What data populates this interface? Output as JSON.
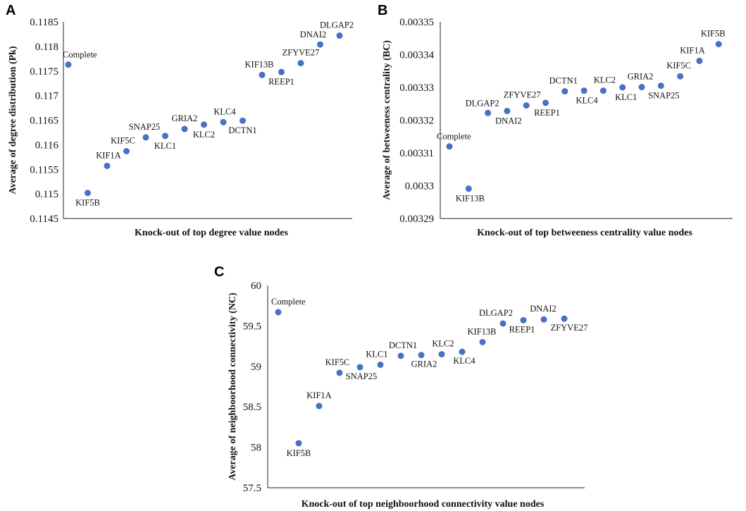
{
  "chart_data": [
    {
      "type": "scatter",
      "panel": "A",
      "xlabel": "Knock-out of top degree value nodes",
      "ylabel": "Average of degree distribution (Pk)",
      "ylim": [
        0.1145,
        0.1185
      ],
      "yticks": [
        "0.1145",
        "0.115",
        "0.1155",
        "0.116",
        "0.1165",
        "0.117",
        "0.1175",
        "0.118",
        "0.1185"
      ],
      "points": [
        {
          "x": 0,
          "y": 0.11763,
          "label": "Complete"
        },
        {
          "x": 1,
          "y": 0.11502,
          "label": "KIF5B"
        },
        {
          "x": 2,
          "y": 0.11557,
          "label": "KIF1A"
        },
        {
          "x": 3,
          "y": 0.11587,
          "label": "KIF5C"
        },
        {
          "x": 4,
          "y": 0.11615,
          "label": "SNAP25"
        },
        {
          "x": 5,
          "y": 0.11618,
          "label": "KLC1"
        },
        {
          "x": 6,
          "y": 0.11632,
          "label": "GRIA2"
        },
        {
          "x": 7,
          "y": 0.11641,
          "label": "KLC2"
        },
        {
          "x": 8,
          "y": 0.11646,
          "label": "KLC4"
        },
        {
          "x": 9,
          "y": 0.11649,
          "label": "DCTN1"
        },
        {
          "x": 10,
          "y": 0.11742,
          "label": "KIF13B"
        },
        {
          "x": 11,
          "y": 0.11748,
          "label": "REEP1"
        },
        {
          "x": 12,
          "y": 0.11766,
          "label": "ZFYVE27"
        },
        {
          "x": 13,
          "y": 0.11804,
          "label": "DNAI2"
        },
        {
          "x": 14,
          "y": 0.11822,
          "label": "DLGAP2"
        }
      ]
    },
    {
      "type": "scatter",
      "panel": "B",
      "xlabel": "Knock-out of top betweeness centrality value nodes",
      "ylabel": "Average of betweeness centrality (BC)",
      "ylim": [
        0.00329,
        0.00335
      ],
      "yticks": [
        "0.00329",
        "0.0033",
        "0.00331",
        "0.00332",
        "0.00333",
        "0.00334",
        "0.00335"
      ],
      "points": [
        {
          "x": 0,
          "y": 0.003312,
          "label": "Complete"
        },
        {
          "x": 1,
          "y": 0.0032991,
          "label": "KIF13B"
        },
        {
          "x": 2,
          "y": 0.0033222,
          "label": "DLGAP2"
        },
        {
          "x": 3,
          "y": 0.0033228,
          "label": "DNAI2"
        },
        {
          "x": 4,
          "y": 0.0033245,
          "label": "ZFYVE27"
        },
        {
          "x": 5,
          "y": 0.0033253,
          "label": "REEP1"
        },
        {
          "x": 6,
          "y": 0.0033288,
          "label": "DCTN1"
        },
        {
          "x": 7,
          "y": 0.003329,
          "label": "KLC4"
        },
        {
          "x": 8,
          "y": 0.003329,
          "label": "KLC2"
        },
        {
          "x": 9,
          "y": 0.00333,
          "label": "KLC1"
        },
        {
          "x": 10,
          "y": 0.0033301,
          "label": "GRIA2"
        },
        {
          "x": 11,
          "y": 0.0033305,
          "label": "SNAP25"
        },
        {
          "x": 12,
          "y": 0.0033334,
          "label": "KIF5C"
        },
        {
          "x": 13,
          "y": 0.0033381,
          "label": "KIF1A"
        },
        {
          "x": 14,
          "y": 0.0033432,
          "label": "KIF5B"
        }
      ]
    },
    {
      "type": "scatter",
      "panel": "C",
      "xlabel": "Knock-out of top neighboorhood connectivity value nodes",
      "ylabel": "Average of neighboorhood connectivity (NC)",
      "ylim": [
        57.5,
        60
      ],
      "yticks": [
        "57.5",
        "58",
        "58.5",
        "59",
        "59.5",
        "60"
      ],
      "points": [
        {
          "x": 0,
          "y": 59.67,
          "label": "Complete"
        },
        {
          "x": 1,
          "y": 58.05,
          "label": "KIF5B"
        },
        {
          "x": 2,
          "y": 58.51,
          "label": "KIF1A"
        },
        {
          "x": 3,
          "y": 58.92,
          "label": "KIF5C"
        },
        {
          "x": 4,
          "y": 58.99,
          "label": "SNAP25"
        },
        {
          "x": 5,
          "y": 59.02,
          "label": "KLC1"
        },
        {
          "x": 6,
          "y": 59.13,
          "label": "DCTN1"
        },
        {
          "x": 7,
          "y": 59.14,
          "label": "GRIA2"
        },
        {
          "x": 8,
          "y": 59.15,
          "label": "KLC2"
        },
        {
          "x": 9,
          "y": 59.18,
          "label": "KLC4"
        },
        {
          "x": 10,
          "y": 59.3,
          "label": "KIF13B"
        },
        {
          "x": 11,
          "y": 59.53,
          "label": "DLGAP2"
        },
        {
          "x": 12,
          "y": 59.57,
          "label": "REEP1"
        },
        {
          "x": 13,
          "y": 59.58,
          "label": "DNAI2"
        },
        {
          "x": 14,
          "y": 59.59,
          "label": "ZFYVE27"
        }
      ]
    }
  ]
}
